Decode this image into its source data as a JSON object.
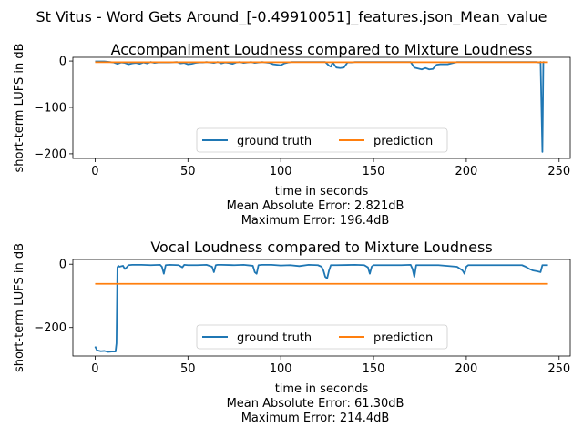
{
  "suptitle": "St Vitus - Word Gets Around_[-0.49910051]_features.json_Mean_value",
  "colors": {
    "ground_truth": "#1f77b4",
    "prediction": "#ff7f0e"
  },
  "chart_data": [
    {
      "type": "line",
      "title": "Accompaniment Loudness compared to Mixture Loudness",
      "xlabel": "time in seconds",
      "ylabel": "short-term LUFS in dB",
      "xlim": [
        -12,
        256
      ],
      "ylim": [
        -210,
        8
      ],
      "xticks": [
        0,
        50,
        100,
        150,
        200,
        250
      ],
      "yticks": [
        0,
        -100,
        -200
      ],
      "grid": false,
      "legend_position": "bottom-center",
      "stats": [
        "Mean Absolute Error: 2.821dB",
        "Maximum Error: 196.4dB"
      ],
      "series": [
        {
          "name": "ground truth",
          "color": "#1f77b4",
          "x": [
            0,
            5,
            8,
            10,
            12,
            14,
            16,
            18,
            20,
            22,
            24,
            26,
            28,
            30,
            32,
            34,
            36,
            40,
            44,
            46,
            48,
            50,
            52,
            54,
            56,
            58,
            60,
            62,
            64,
            66,
            68,
            70,
            72,
            74,
            76,
            78,
            80,
            82,
            84,
            86,
            88,
            90,
            92,
            94,
            96,
            98,
            100,
            102,
            104,
            106,
            110,
            115,
            120,
            124,
            126,
            127,
            128,
            130,
            132,
            134,
            136,
            138,
            140,
            145,
            150,
            155,
            160,
            165,
            170,
            172,
            174,
            176,
            178,
            180,
            182,
            184,
            186,
            188,
            190,
            195,
            200,
            205,
            210,
            215,
            220,
            225,
            230,
            233,
            236,
            238,
            239,
            240,
            241,
            241.5,
            242
          ],
          "y": [
            -1,
            -1,
            -2,
            -3,
            -6,
            -3,
            -4,
            -7,
            -5,
            -4,
            -6,
            -3,
            -5,
            -2,
            -4,
            -3,
            -3,
            -3,
            -2,
            -5,
            -4,
            -7,
            -6,
            -4,
            -3,
            -3,
            -2,
            -3,
            -4,
            -2,
            -5,
            -3,
            -4,
            -6,
            -3,
            -2,
            -4,
            -3,
            -2,
            -4,
            -3,
            -2,
            -3,
            -4,
            -7,
            -8,
            -9,
            -5,
            -3,
            -2,
            -2,
            -2,
            -2,
            -2,
            -10,
            -12,
            -3,
            -14,
            -15,
            -14,
            -3,
            -3,
            -2,
            -2,
            -2,
            -2,
            -2,
            -2,
            -2,
            -14,
            -16,
            -18,
            -15,
            -18,
            -17,
            -8,
            -7,
            -7,
            -7,
            -2,
            -2,
            -2,
            -2,
            -2,
            -2,
            -2,
            -2,
            -2,
            -2,
            -2,
            -3,
            -2,
            -196,
            -2,
            -2
          ]
        },
        {
          "name": "prediction",
          "color": "#ff7f0e",
          "x": [
            0,
            244
          ],
          "y": [
            -2.5,
            -2.5
          ]
        }
      ]
    },
    {
      "type": "line",
      "title": "Vocal Loudness compared to Mixture Loudness",
      "xlabel": "time in seconds",
      "ylabel": "short-term LUFS in dB",
      "xlim": [
        -12,
        256
      ],
      "ylim": [
        -290,
        15
      ],
      "xticks": [
        0,
        50,
        100,
        150,
        200,
        250
      ],
      "yticks": [
        0,
        -200
      ],
      "grid": false,
      "legend_position": "bottom-center",
      "stats": [
        "Mean Absolute Error: 61.30dB",
        "Maximum Error: 214.4dB"
      ],
      "series": [
        {
          "name": "ground truth",
          "color": "#1f77b4",
          "x": [
            0,
            1,
            3,
            5,
            7,
            9,
            11,
            11.5,
            12,
            12.5,
            13,
            15,
            16,
            17,
            18,
            20,
            25,
            30,
            35,
            36,
            37,
            38,
            40,
            45,
            47,
            48,
            50,
            55,
            60,
            63,
            64,
            65,
            66,
            68,
            75,
            80,
            85,
            86,
            87,
            88,
            90,
            95,
            100,
            105,
            110,
            115,
            120,
            122,
            123,
            124,
            125,
            126,
            127,
            130,
            140,
            145,
            147,
            148,
            149,
            150,
            160,
            165,
            170,
            171,
            172,
            173,
            175,
            185,
            195,
            198,
            199,
            200,
            201,
            203,
            210,
            220,
            230,
            232,
            234,
            236,
            238,
            240,
            241,
            242,
            244
          ],
          "y": [
            -260,
            -272,
            -275,
            -274,
            -277,
            -276,
            -276,
            -250,
            -10,
            -5,
            -8,
            -5,
            -15,
            -10,
            -3,
            -2,
            -2,
            -3,
            -2,
            -8,
            -30,
            -3,
            -2,
            -3,
            -10,
            -2,
            -3,
            -3,
            -2,
            -8,
            -25,
            -3,
            -2,
            -2,
            -3,
            -2,
            -5,
            -25,
            -30,
            -3,
            -2,
            -2,
            -4,
            -3,
            -6,
            -2,
            -3,
            -8,
            -20,
            -40,
            -45,
            -20,
            -3,
            -3,
            -2,
            -3,
            -10,
            -30,
            -8,
            -3,
            -3,
            -3,
            -2,
            -15,
            -40,
            -3,
            -3,
            -3,
            -8,
            -20,
            -30,
            -8,
            -3,
            -3,
            -3,
            -3,
            -3,
            -8,
            -15,
            -20,
            -22,
            -25,
            -3,
            -3,
            -3
          ]
        },
        {
          "name": "prediction",
          "color": "#ff7f0e",
          "x": [
            0,
            244
          ],
          "y": [
            -62,
            -62
          ]
        }
      ]
    }
  ]
}
